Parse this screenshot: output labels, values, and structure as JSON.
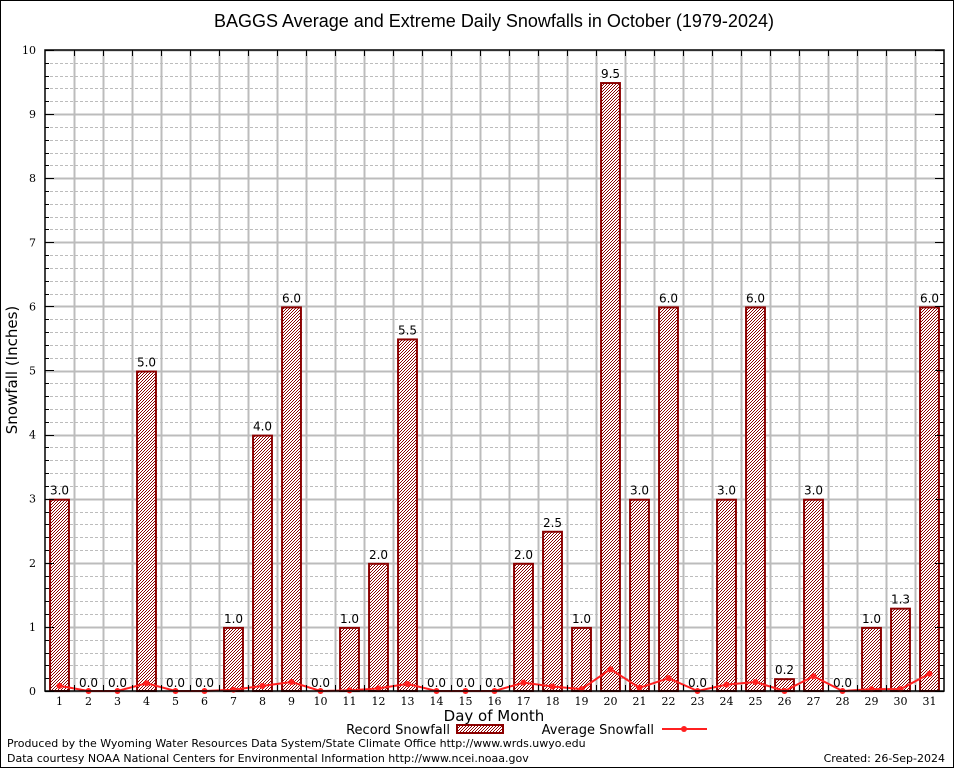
{
  "chart_data": {
    "type": "bar",
    "title": "BAGGS Average and Extreme Daily Snowfalls in October (1979-2024)",
    "xlabel": "Day of Month",
    "ylabel": "Snowfall (Inches)",
    "ylim": [
      0,
      10
    ],
    "yticks": [
      "0",
      "1",
      "2",
      "3",
      "4",
      "5",
      "6",
      "7",
      "8",
      "9",
      "10"
    ],
    "grid": true,
    "legend_position": "bottom",
    "categories": [
      "1",
      "2",
      "3",
      "4",
      "5",
      "6",
      "7",
      "8",
      "9",
      "10",
      "11",
      "12",
      "13",
      "14",
      "15",
      "16",
      "17",
      "18",
      "19",
      "20",
      "21",
      "22",
      "23",
      "24",
      "25",
      "26",
      "27",
      "28",
      "29",
      "30",
      "31"
    ],
    "series": [
      {
        "name": "Record Snowfall",
        "type": "bar",
        "color": "#8b0000",
        "values": [
          3.0,
          0.0,
          0.0,
          5.0,
          0.0,
          0.0,
          1.0,
          4.0,
          6.0,
          0.0,
          1.0,
          2.0,
          5.5,
          0.0,
          0.0,
          0.0,
          2.0,
          2.5,
          1.0,
          9.5,
          3.0,
          6.0,
          0.0,
          3.0,
          6.0,
          0.2,
          3.0,
          0.0,
          1.0,
          1.3,
          6.0
        ],
        "labels": [
          "3.0",
          "0.0",
          "0.0",
          "5.0",
          "0.0",
          "0.0",
          "1.0",
          "4.0",
          "6.0",
          "0.0",
          "1.0",
          "2.0",
          "5.5",
          "0.0",
          "0.0",
          "0.0",
          "2.0",
          "2.5",
          "1.0",
          "9.5",
          "3.0",
          "6.0",
          "0.0",
          "3.0",
          "6.0",
          "0.2",
          "3.0",
          "0.0",
          "1.0",
          "1.3",
          "6.0"
        ]
      },
      {
        "name": "Average Snowfall",
        "type": "line",
        "color": "#ff2020",
        "values": [
          0.08,
          0.0,
          0.0,
          0.12,
          0.0,
          0.0,
          0.02,
          0.08,
          0.14,
          0.0,
          0.01,
          0.04,
          0.11,
          0.0,
          0.0,
          0.0,
          0.13,
          0.07,
          0.03,
          0.34,
          0.05,
          0.2,
          0.0,
          0.1,
          0.14,
          0.0,
          0.23,
          0.0,
          0.03,
          0.03,
          0.27
        ]
      }
    ]
  },
  "footer": {
    "line1": "Produced by the Wyoming Water Resources Data System/State Climate Office http://www.wrds.uwyo.edu",
    "line2": "Data courtesy NOAA National Centers for Environmental Information http://www.ncei.noaa.gov",
    "created": "Created: 26-Sep-2024"
  }
}
